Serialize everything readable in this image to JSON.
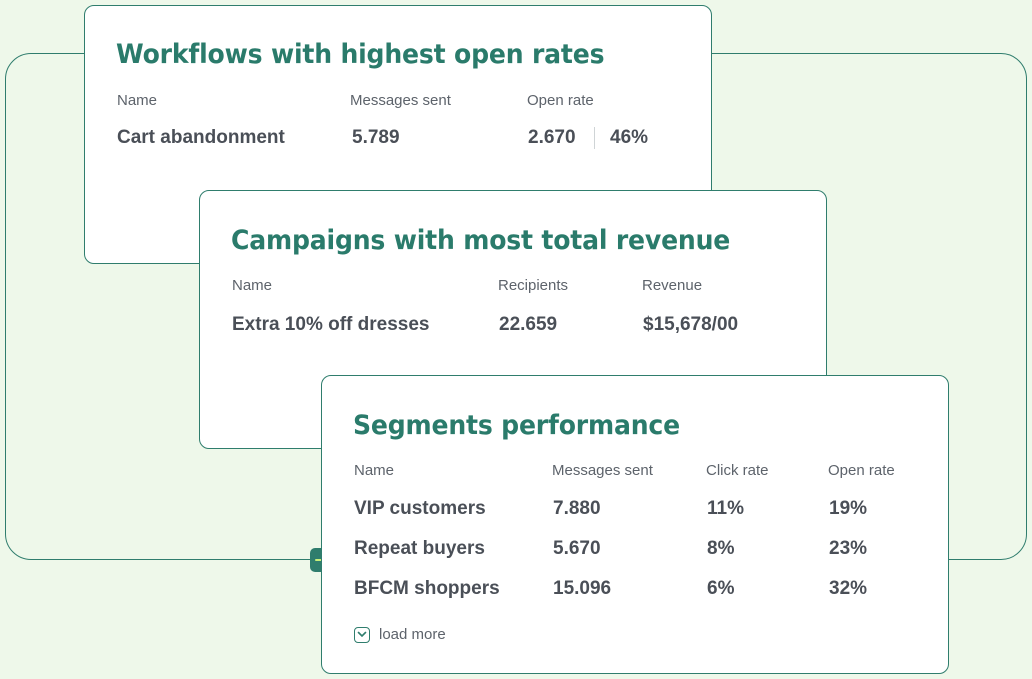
{
  "workflows": {
    "title": "Workflows with highest open rates",
    "headers": {
      "name": "Name",
      "messages_sent": "Messages sent",
      "open_rate": "Open rate"
    },
    "row": {
      "name": "Cart abandonment",
      "messages_sent": "5.789",
      "opens": "2.670",
      "open_rate": "46%"
    }
  },
  "campaigns": {
    "title": "Campaigns with most total revenue",
    "headers": {
      "name": "Name",
      "recipients": "Recipients",
      "revenue": "Revenue"
    },
    "row": {
      "name": "Extra 10% off dresses",
      "recipients": "22.659",
      "revenue": "$15,678/00"
    }
  },
  "segments": {
    "title": "Segments performance",
    "headers": {
      "name": "Name",
      "messages_sent": "Messages sent",
      "click_rate": "Click rate",
      "open_rate": "Open rate"
    },
    "rows": [
      {
        "name": "VIP customers",
        "messages_sent": "7.880",
        "click_rate": "11%",
        "open_rate": "19%"
      },
      {
        "name": "Repeat buyers",
        "messages_sent": "5.670",
        "click_rate": "8%",
        "open_rate": "23%"
      },
      {
        "name": "BFCM shoppers",
        "messages_sent": "15.096",
        "click_rate": "6%",
        "open_rate": "32%"
      }
    ],
    "load_more_label": "load more"
  },
  "icons": {
    "arrow_badge": "arrow-right-icon",
    "load_more": "chevron-down-icon"
  },
  "colors": {
    "accent": "#2f7d6d",
    "title": "#2a7b6b",
    "background": "#eef8ea",
    "arrow": "#c8f07a"
  }
}
